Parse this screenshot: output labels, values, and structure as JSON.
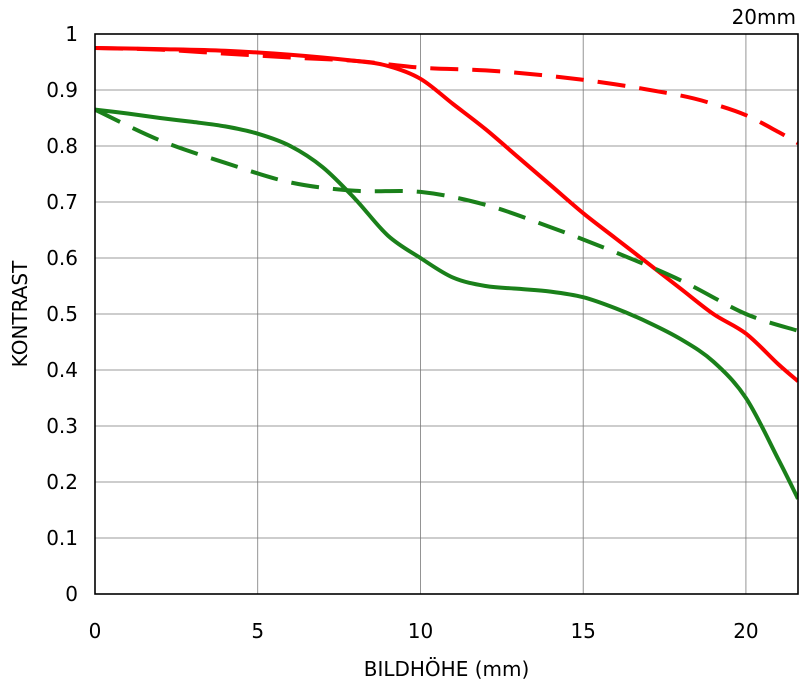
{
  "chart_data": {
    "type": "line",
    "corner_label": "20mm",
    "xlabel": "BILDHÖHE (mm)",
    "ylabel": "KONTRAST",
    "xlim": [
      0,
      21.6
    ],
    "ylim": [
      0,
      1
    ],
    "x_ticks": [
      0,
      5,
      10,
      15,
      20
    ],
    "x_tick_labels": [
      "0",
      "5",
      "10",
      "15",
      "20"
    ],
    "y_ticks": [
      0,
      0.1,
      0.2,
      0.3,
      0.4,
      0.5,
      0.6,
      0.7,
      0.8,
      0.9,
      1
    ],
    "y_tick_labels": [
      "0",
      "0.1",
      "0.2",
      "0.3",
      "0.4",
      "0.5",
      "0.6",
      "0.7",
      "0.8",
      "0.9",
      "1"
    ],
    "grid": true,
    "legend": "none",
    "series": [
      {
        "color": "#ff0000",
        "style": "solid",
        "points": [
          [
            0,
            0.975
          ],
          [
            2,
            0.973
          ],
          [
            4,
            0.97
          ],
          [
            6,
            0.963
          ],
          [
            8,
            0.952
          ],
          [
            9,
            0.943
          ],
          [
            10,
            0.92
          ],
          [
            11,
            0.875
          ],
          [
            12,
            0.83
          ],
          [
            13,
            0.78
          ],
          [
            14,
            0.73
          ],
          [
            15,
            0.68
          ],
          [
            16,
            0.635
          ],
          [
            17,
            0.59
          ],
          [
            18,
            0.545
          ],
          [
            19,
            0.5
          ],
          [
            20,
            0.465
          ],
          [
            21,
            0.41
          ],
          [
            21.6,
            0.38
          ]
        ]
      },
      {
        "color": "#ff0000",
        "style": "dashed",
        "points": [
          [
            0,
            0.975
          ],
          [
            2,
            0.972
          ],
          [
            4,
            0.965
          ],
          [
            6,
            0.958
          ],
          [
            8,
            0.952
          ],
          [
            10,
            0.94
          ],
          [
            12,
            0.935
          ],
          [
            14,
            0.925
          ],
          [
            16,
            0.91
          ],
          [
            18,
            0.89
          ],
          [
            19,
            0.875
          ],
          [
            20,
            0.855
          ],
          [
            21,
            0.825
          ],
          [
            21.6,
            0.805
          ]
        ]
      },
      {
        "color": "#1a801a",
        "style": "solid",
        "points": [
          [
            0,
            0.865
          ],
          [
            1,
            0.858
          ],
          [
            2,
            0.85
          ],
          [
            3,
            0.843
          ],
          [
            4,
            0.835
          ],
          [
            5,
            0.822
          ],
          [
            6,
            0.8
          ],
          [
            7,
            0.762
          ],
          [
            8,
            0.705
          ],
          [
            9,
            0.64
          ],
          [
            10,
            0.6
          ],
          [
            11,
            0.565
          ],
          [
            12,
            0.55
          ],
          [
            13,
            0.545
          ],
          [
            14,
            0.54
          ],
          [
            15,
            0.53
          ],
          [
            16,
            0.51
          ],
          [
            17,
            0.485
          ],
          [
            18,
            0.455
          ],
          [
            19,
            0.415
          ],
          [
            20,
            0.35
          ],
          [
            21,
            0.24
          ],
          [
            21.6,
            0.17
          ]
        ]
      },
      {
        "color": "#1a801a",
        "style": "dashed",
        "points": [
          [
            0,
            0.865
          ],
          [
            2,
            0.81
          ],
          [
            4,
            0.77
          ],
          [
            6,
            0.735
          ],
          [
            8,
            0.72
          ],
          [
            10,
            0.718
          ],
          [
            12,
            0.695
          ],
          [
            14,
            0.655
          ],
          [
            16,
            0.61
          ],
          [
            18,
            0.56
          ],
          [
            20,
            0.5
          ],
          [
            21.6,
            0.47
          ]
        ]
      }
    ]
  }
}
